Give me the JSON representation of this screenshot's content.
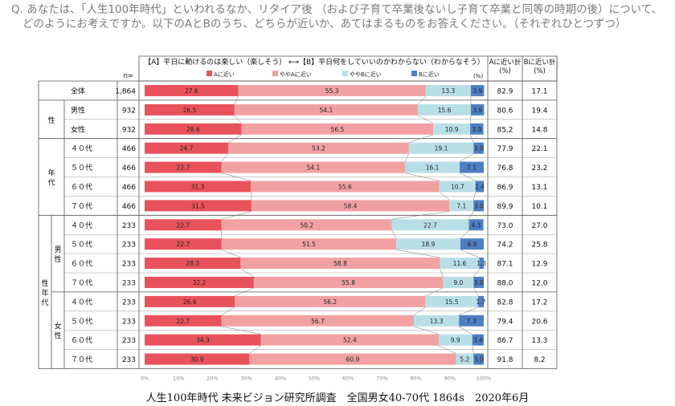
{
  "question": {
    "line1": "Q. あなたは、「人生100年時代」といわれるなか、リタイア後 （および子育て卒業後ないし子育て卒業と同等の時期の後）について、",
    "line2": "どのようにお考えですか。以下のAとBのうち、どちらが近いか、あてはまるものをお答えください。（それぞれひとつずつ）"
  },
  "footer": "人生100年時代 未来ビジョン研究所調査　全国男女40-70代 1864s　2020年6月",
  "chart_data": {
    "type": "bar",
    "stacked": true,
    "orientation": "horizontal",
    "title": "【A】平日に動けるのは楽しい（楽しそう） ⟷【B】平日何をしていいのかわからない（わからなそう）",
    "unit": "(%)",
    "n_header": "n=",
    "legend": [
      "Aに近い",
      "ややAに近い",
      "ややBに近い",
      "Bに近い"
    ],
    "colors": [
      "#e8525b",
      "#f2a1a3",
      "#b9dfe6",
      "#4f7fc2"
    ],
    "xlim": [
      0,
      100
    ],
    "x_ticks": [
      "0%",
      "10%",
      "20%",
      "30%",
      "40%",
      "50%",
      "60%",
      "70%",
      "80%",
      "90%",
      "100%"
    ],
    "sum_headers": [
      "Aに近い計\n(%)",
      "Bに近い計\n(%)"
    ],
    "groups": [
      {
        "label": "",
        "sub": "",
        "rows": [
          0
        ]
      },
      {
        "label": "性",
        "sub": "",
        "rows": [
          1,
          2
        ]
      },
      {
        "label": "年代",
        "sub": "",
        "rows": [
          3,
          4,
          5,
          6
        ]
      },
      {
        "label": "性年代",
        "sub": "男性",
        "rows": [
          7,
          8,
          9,
          10
        ]
      },
      {
        "label": "性年代",
        "sub": "女性",
        "rows": [
          11,
          12,
          13,
          14
        ]
      }
    ],
    "group_labels": {
      "sex": "性",
      "age": "年代",
      "sexage": "性年代",
      "male": "男性",
      "female": "女性"
    },
    "rows": [
      {
        "label": "全体",
        "n": "1,864",
        "values": [
          27.6,
          55.3,
          13.3,
          3.9
        ],
        "a_total": "82.9",
        "b_total": "17.1"
      },
      {
        "label": "男性",
        "n": "932",
        "values": [
          26.5,
          54.1,
          15.6,
          3.9
        ],
        "a_total": "80.6",
        "b_total": "19.4"
      },
      {
        "label": "女性",
        "n": "932",
        "values": [
          28.6,
          56.5,
          10.9,
          3.9
        ],
        "a_total": "85.2",
        "b_total": "14.8"
      },
      {
        "label": "４０代",
        "n": "466",
        "values": [
          24.7,
          53.2,
          19.1,
          3.0
        ],
        "a_total": "77.9",
        "b_total": "22.1"
      },
      {
        "label": "５０代",
        "n": "466",
        "values": [
          22.7,
          54.1,
          16.1,
          7.1
        ],
        "a_total": "76.8",
        "b_total": "23.2"
      },
      {
        "label": "６０代",
        "n": "466",
        "values": [
          31.3,
          55.6,
          10.7,
          2.4
        ],
        "a_total": "86.9",
        "b_total": "13.1"
      },
      {
        "label": "７０代",
        "n": "466",
        "values": [
          31.5,
          58.4,
          7.1,
          3.0
        ],
        "a_total": "89.9",
        "b_total": "10.1"
      },
      {
        "label": "４０代",
        "n": "233",
        "values": [
          22.7,
          50.2,
          22.7,
          4.3
        ],
        "a_total": "73.0",
        "b_total": "27.0"
      },
      {
        "label": "５０代",
        "n": "233",
        "values": [
          22.7,
          51.5,
          18.9,
          6.9
        ],
        "a_total": "74.2",
        "b_total": "25.8"
      },
      {
        "label": "６０代",
        "n": "233",
        "values": [
          28.3,
          58.8,
          11.6,
          1.3
        ],
        "a_total": "87.1",
        "b_total": "12.9"
      },
      {
        "label": "７０代",
        "n": "233",
        "values": [
          32.2,
          55.8,
          9.0,
          3.0
        ],
        "a_total": "88.0",
        "b_total": "12.0"
      },
      {
        "label": "４０代",
        "n": "233",
        "values": [
          26.6,
          56.2,
          15.5,
          1.7
        ],
        "a_total": "82.8",
        "b_total": "17.2"
      },
      {
        "label": "５０代",
        "n": "233",
        "values": [
          22.7,
          56.7,
          13.3,
          7.3
        ],
        "a_total": "79.4",
        "b_total": "20.6"
      },
      {
        "label": "６０代",
        "n": "233",
        "values": [
          34.3,
          52.4,
          9.9,
          3.4
        ],
        "a_total": "86.7",
        "b_total": "13.3"
      },
      {
        "label": "７０代",
        "n": "233",
        "values": [
          30.9,
          60.9,
          5.2,
          3.0
        ],
        "a_total": "91.8",
        "b_total": "8.2"
      }
    ]
  }
}
